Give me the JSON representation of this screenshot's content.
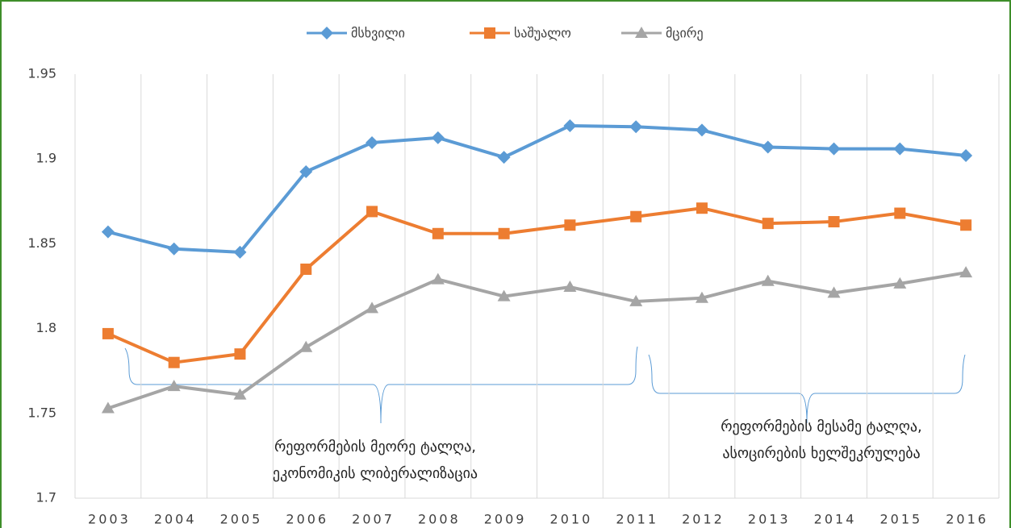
{
  "chart_data": {
    "type": "line",
    "categories": [
      "2003",
      "2004",
      "2005",
      "2006",
      "2007",
      "2008",
      "2009",
      "2010",
      "2011",
      "2012",
      "2013",
      "2014",
      "2015",
      "2016"
    ],
    "series": [
      {
        "name": "მსხვილი",
        "color": "#5b9bd5",
        "marker": "diamond",
        "values": [
          1.857,
          1.847,
          1.845,
          1.8925,
          1.9096,
          1.9125,
          1.901,
          1.9196,
          1.919,
          1.917,
          1.907,
          1.906,
          1.906,
          1.902
        ]
      },
      {
        "name": "საშუალო",
        "color": "#ed7d31",
        "marker": "square",
        "values": [
          1.797,
          1.78,
          1.785,
          1.835,
          1.869,
          1.856,
          1.856,
          1.861,
          1.866,
          1.871,
          1.862,
          1.863,
          1.868,
          1.861
        ]
      },
      {
        "name": "მცირე",
        "color": "#a5a5a5",
        "marker": "triangle",
        "values": [
          1.753,
          1.766,
          1.761,
          1.789,
          1.812,
          1.829,
          1.819,
          1.8245,
          1.816,
          1.818,
          1.828,
          1.821,
          1.8265,
          1.833
        ]
      }
    ],
    "ylim": [
      1.7,
      1.95
    ],
    "yticks": [
      1.7,
      1.75,
      1.8,
      1.85,
      1.9,
      1.95
    ],
    "grid": "vertical",
    "legend": "top",
    "annotations": [
      {
        "lines": [
          "რეფორმების მეორე ტალღა,",
          "ეკონომიკის ლიბერალიზაცია"
        ]
      },
      {
        "lines": [
          "რეფორმების მესამე ტალღა,",
          "ასოცირების ხელშეკრულება"
        ]
      }
    ]
  }
}
